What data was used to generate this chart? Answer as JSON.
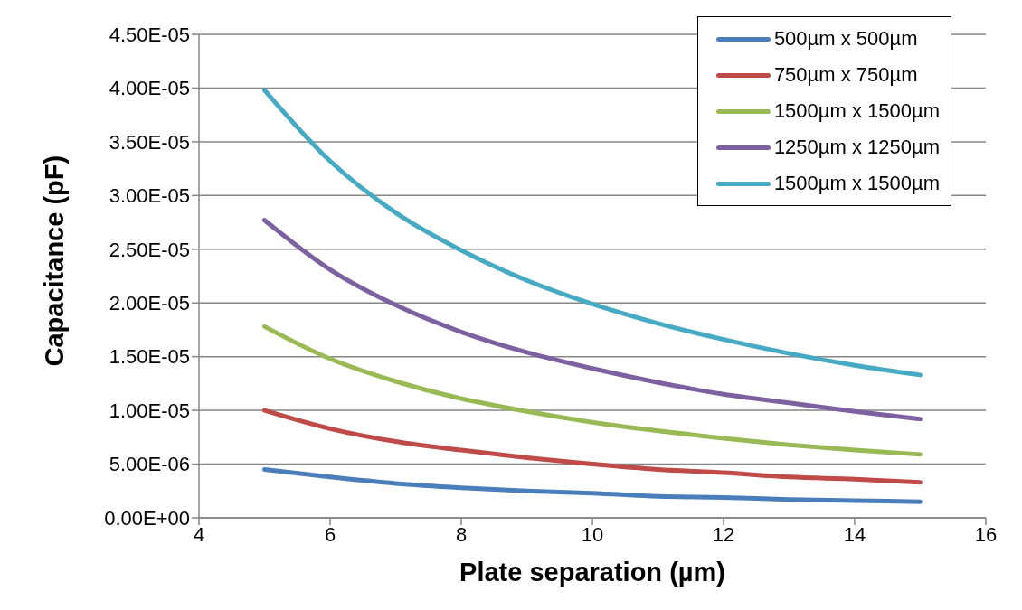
{
  "chart_data": {
    "type": "line",
    "xlabel": "Plate separation (µm)",
    "ylabel": "Capacitance (pF)",
    "x": [
      5,
      6,
      7,
      8,
      9,
      10,
      11,
      12,
      13,
      14,
      15
    ],
    "series": [
      {
        "name": "500µm x 500µm",
        "color": "#4a7ebb",
        "values": [
          4.5e-06,
          3.8e-06,
          3.2e-06,
          2.8e-06,
          2.5e-06,
          2.3e-06,
          2e-06,
          1.9e-06,
          1.7e-06,
          1.6e-06,
          1.5e-06
        ]
      },
      {
        "name": "750µm x 750µm",
        "color": "#be4b48",
        "values": [
          1e-05,
          8.3e-06,
          7.1e-06,
          6.3e-06,
          5.6e-06,
          5e-06,
          4.5e-06,
          4.2e-06,
          3.8e-06,
          3.6e-06,
          3.3e-06
        ]
      },
      {
        "name": "1500µm x 1500µm",
        "color": "#98b954",
        "values": [
          1.78e-05,
          1.48e-05,
          1.27e-05,
          1.11e-05,
          9.9e-06,
          8.9e-06,
          8.1e-06,
          7.4e-06,
          6.8e-06,
          6.3e-06,
          5.9e-06
        ]
      },
      {
        "name": "1250µm x 1250µm",
        "color": "#7d60a0",
        "values": [
          2.77e-05,
          2.31e-05,
          1.98e-05,
          1.73e-05,
          1.54e-05,
          1.39e-05,
          1.26e-05,
          1.15e-05,
          1.07e-05,
          9.9e-06,
          9.2e-06
        ]
      },
      {
        "name": "1500µm x 1500µm",
        "color": "#46aac5",
        "values": [
          3.98e-05,
          3.32e-05,
          2.84e-05,
          2.49e-05,
          2.21e-05,
          1.99e-05,
          1.81e-05,
          1.66e-05,
          1.53e-05,
          1.42e-05,
          1.33e-05
        ]
      }
    ],
    "xlim": [
      4,
      16
    ],
    "xticks": [
      4,
      6,
      8,
      10,
      12,
      14,
      16
    ],
    "ylim": [
      0,
      4.5e-05
    ],
    "yticks": [
      {
        "value": 0,
        "label": "0.00E+00"
      },
      {
        "value": 5e-06,
        "label": "5.00E-06"
      },
      {
        "value": 1e-05,
        "label": "1.00E-05"
      },
      {
        "value": 1.5e-05,
        "label": "1.50E-05"
      },
      {
        "value": 2e-05,
        "label": "2.00E-05"
      },
      {
        "value": 2.5e-05,
        "label": "2.50E-05"
      },
      {
        "value": 3e-05,
        "label": "3.00E-05"
      },
      {
        "value": 3.5e-05,
        "label": "3.50E-05"
      },
      {
        "value": 4e-05,
        "label": "4.00E-05"
      },
      {
        "value": 4.5e-05,
        "label": "4.50E-05"
      }
    ],
    "grid": "y",
    "legend": "top right",
    "marker": "none",
    "line_style": "solid"
  }
}
